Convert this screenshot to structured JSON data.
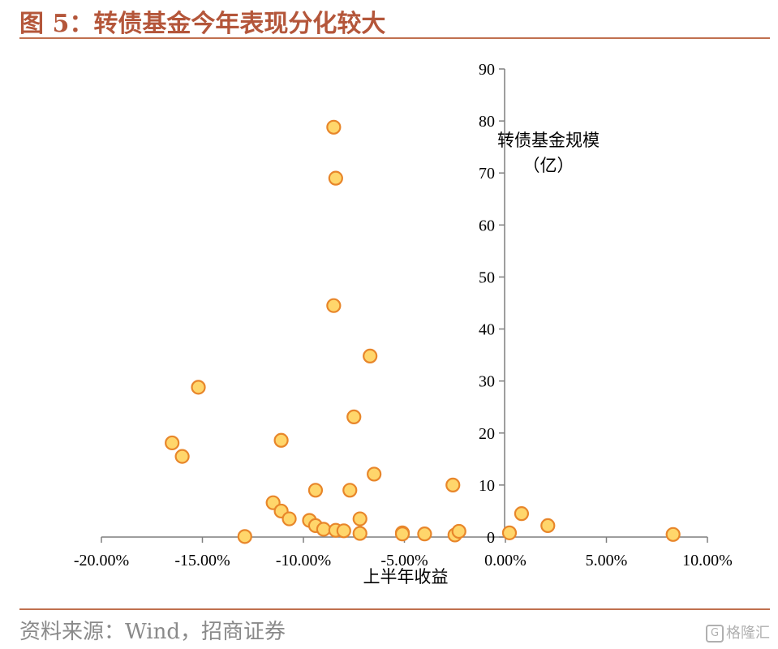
{
  "title": "图 5：转债基金今年表现分化较大",
  "source": "资料来源：Wind，招商证券",
  "watermark": "格隆汇",
  "watermark_icon": "g-logo-icon",
  "colors": {
    "accent": "#b4563a",
    "point_fill": "#ffd66b",
    "point_stroke": "#e8862a"
  },
  "chart_data": {
    "type": "scatter",
    "xlabel": "上半年收益",
    "ylabel": [
      "转债基金规模",
      "（亿）"
    ],
    "xlim": [
      -0.2,
      0.1
    ],
    "ylim": [
      0,
      90
    ],
    "x_ticks": [
      -0.2,
      -0.15,
      -0.1,
      -0.05,
      0.0,
      0.05,
      0.1
    ],
    "x_tick_labels": [
      "-20.00%",
      "-15.00%",
      "-10.00%",
      "-5.00%",
      "0.00%",
      "5.00%",
      "10.00%"
    ],
    "y_ticks": [
      0,
      10,
      20,
      30,
      40,
      50,
      60,
      70,
      80,
      90
    ],
    "y_tick_labels": [
      "0",
      "10",
      "20",
      "30",
      "40",
      "50",
      "60",
      "70",
      "80",
      "90"
    ],
    "grid": false,
    "points": [
      {
        "x": -0.085,
        "y": 78.8
      },
      {
        "x": -0.084,
        "y": 69.0
      },
      {
        "x": -0.085,
        "y": 44.5
      },
      {
        "x": -0.067,
        "y": 34.8
      },
      {
        "x": -0.152,
        "y": 28.8
      },
      {
        "x": -0.075,
        "y": 23.1
      },
      {
        "x": -0.111,
        "y": 18.6
      },
      {
        "x": -0.165,
        "y": 18.1
      },
      {
        "x": -0.16,
        "y": 15.5
      },
      {
        "x": -0.065,
        "y": 12.1
      },
      {
        "x": -0.026,
        "y": 10.0
      },
      {
        "x": -0.094,
        "y": 9.0
      },
      {
        "x": -0.077,
        "y": 9.0
      },
      {
        "x": -0.115,
        "y": 6.6
      },
      {
        "x": -0.111,
        "y": 5.0
      },
      {
        "x": -0.107,
        "y": 3.5
      },
      {
        "x": -0.097,
        "y": 3.2
      },
      {
        "x": -0.072,
        "y": 3.5
      },
      {
        "x": -0.094,
        "y": 2.2
      },
      {
        "x": -0.09,
        "y": 1.5
      },
      {
        "x": -0.084,
        "y": 1.3
      },
      {
        "x": -0.08,
        "y": 1.2
      },
      {
        "x": -0.072,
        "y": 0.7
      },
      {
        "x": -0.129,
        "y": 0.1
      },
      {
        "x": -0.051,
        "y": 0.8
      },
      {
        "x": -0.051,
        "y": 0.6
      },
      {
        "x": -0.04,
        "y": 0.6
      },
      {
        "x": -0.025,
        "y": 0.4
      },
      {
        "x": -0.023,
        "y": 1.1
      },
      {
        "x": 0.002,
        "y": 0.8
      },
      {
        "x": 0.008,
        "y": 4.5
      },
      {
        "x": 0.021,
        "y": 2.2
      },
      {
        "x": 0.083,
        "y": 0.5
      }
    ]
  }
}
